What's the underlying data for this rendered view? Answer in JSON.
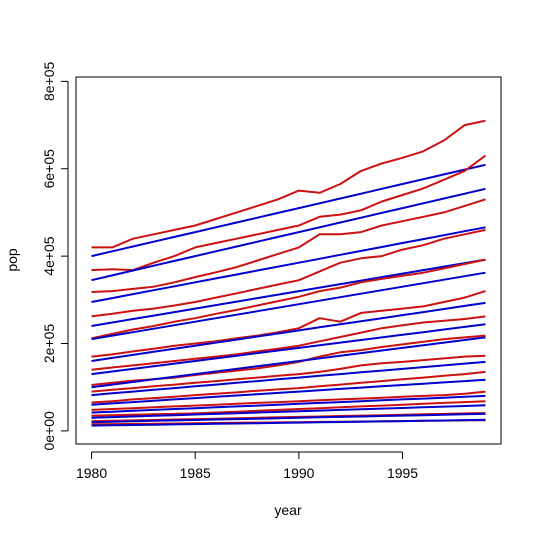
{
  "chart_data": {
    "type": "line",
    "title": "",
    "xlabel": "year",
    "ylabel": "pop",
    "xlim": [
      1979.25,
      1999.75
    ],
    "ylim": [
      -30000,
      810000
    ],
    "grid": false,
    "legend": "none",
    "x_ticks": [
      1980,
      1985,
      1990,
      1995
    ],
    "x_tick_labels": [
      "1980",
      "1985",
      "1990",
      "1995"
    ],
    "y_ticks": [
      0,
      200000,
      400000,
      600000,
      800000
    ],
    "y_tick_labels": [
      "0e+00",
      "2e+05",
      "4e+05",
      "6e+05",
      "8e+05"
    ],
    "colors": {
      "observed": "#cc1111",
      "fitted": "#0000cc"
    },
    "x": [
      1980,
      1981,
      1982,
      1983,
      1984,
      1985,
      1986,
      1987,
      1988,
      1989,
      1990,
      1991,
      1992,
      1993,
      1994,
      1995,
      1996,
      1997,
      1998,
      1999
    ],
    "series": [
      {
        "values": [
          420000,
          420000,
          440000,
          450000,
          460000,
          470000,
          485000,
          500000,
          515000,
          530000,
          550000,
          545000,
          565000,
          595000,
          612000,
          625000,
          640000,
          665000,
          700000,
          710000
        ]
      },
      {
        "values": [
          400000,
          411000,
          422000,
          433000,
          444000,
          455000,
          466000,
          477000,
          488000,
          499000,
          510000,
          521000,
          532000,
          543000,
          554000,
          565000,
          576000,
          587000,
          598000,
          609000
        ]
      },
      {
        "values": [
          368000,
          370000,
          368000,
          385000,
          400000,
          420000,
          430000,
          440000,
          450000,
          460000,
          470000,
          490000,
          495000,
          505000,
          525000,
          540000,
          555000,
          575000,
          595000,
          630000
        ]
      },
      {
        "values": [
          345000,
          356000,
          367000,
          378000,
          389000,
          400000,
          411000,
          422000,
          433000,
          444000,
          455000,
          466000,
          477000,
          488000,
          499000,
          510000,
          521000,
          532000,
          543000,
          554000
        ]
      },
      {
        "values": [
          318000,
          320000,
          325000,
          330000,
          340000,
          352000,
          363000,
          375000,
          390000,
          405000,
          420000,
          450000,
          450000,
          455000,
          470000,
          480000,
          490000,
          500000,
          515000,
          530000
        ]
      },
      {
        "values": [
          295000,
          304000,
          313000,
          322000,
          331000,
          340000,
          349000,
          358000,
          367000,
          376000,
          385000,
          394000,
          403000,
          412000,
          421000,
          430000,
          439000,
          448000,
          457000,
          466000
        ]
      },
      {
        "values": [
          262000,
          268000,
          275000,
          280000,
          287000,
          295000,
          305000,
          315000,
          325000,
          335000,
          345000,
          365000,
          385000,
          395000,
          400000,
          415000,
          425000,
          440000,
          450000,
          460000
        ]
      },
      {
        "values": [
          240000,
          248000,
          256000,
          264000,
          272000,
          280000,
          288000,
          296000,
          304000,
          312000,
          320000,
          328000,
          336000,
          344000,
          352000,
          360000,
          368000,
          376000,
          384000,
          392000
        ]
      },
      {
        "values": [
          212000,
          222000,
          232000,
          240000,
          250000,
          258000,
          268000,
          277000,
          287000,
          297000,
          307000,
          320000,
          328000,
          340000,
          348000,
          355000,
          362000,
          372000,
          382000,
          392000
        ]
      },
      {
        "values": [
          210000,
          218000,
          226000,
          234000,
          242000,
          250000,
          258000,
          266000,
          274000,
          282000,
          290000,
          298000,
          306000,
          314000,
          322000,
          330000,
          338000,
          346000,
          354000,
          362000
        ]
      },
      {
        "values": [
          170000,
          175000,
          182000,
          188000,
          195000,
          200000,
          205000,
          212000,
          218000,
          226000,
          235000,
          258000,
          250000,
          270000,
          275000,
          280000,
          285000,
          295000,
          305000,
          320000
        ]
      },
      {
        "values": [
          160000,
          167000,
          174000,
          181000,
          188000,
          195000,
          202000,
          209000,
          216000,
          223000,
          230000,
          237000,
          244000,
          251000,
          258000,
          265000,
          272000,
          279000,
          286000,
          293000
        ]
      },
      {
        "values": [
          140000,
          145000,
          150000,
          155000,
          160000,
          165000,
          170000,
          175000,
          182000,
          188000,
          195000,
          205000,
          215000,
          225000,
          235000,
          242000,
          248000,
          252000,
          256000,
          262000
        ]
      },
      {
        "values": [
          130000,
          136000,
          142000,
          148000,
          154000,
          160000,
          166000,
          172000,
          178000,
          184000,
          190000,
          196000,
          202000,
          208000,
          214000,
          220000,
          226000,
          232000,
          238000,
          244000
        ]
      },
      {
        "values": [
          105000,
          110000,
          115000,
          118000,
          122000,
          128000,
          133000,
          138000,
          143000,
          150000,
          158000,
          170000,
          180000,
          185000,
          192000,
          198000,
          204000,
          210000,
          214000,
          218000
        ]
      },
      {
        "values": [
          100000,
          106000,
          112000,
          118000,
          124000,
          130000,
          136000,
          142000,
          148000,
          154000,
          160000,
          166000,
          172000,
          178000,
          184000,
          190000,
          196000,
          202000,
          208000,
          214000
        ]
      },
      {
        "values": [
          90000,
          94000,
          98000,
          102000,
          106000,
          110000,
          114000,
          118000,
          122000,
          126000,
          130000,
          135000,
          142000,
          150000,
          155000,
          158000,
          162000,
          166000,
          170000,
          172000
        ]
      },
      {
        "values": [
          82000,
          86000,
          90000,
          94000,
          98000,
          102000,
          106000,
          110000,
          114000,
          118000,
          122000,
          126000,
          130000,
          134000,
          138000,
          142000,
          146000,
          150000,
          154000,
          158000
        ]
      },
      {
        "values": [
          65000,
          68000,
          72000,
          75000,
          78000,
          82000,
          85000,
          88000,
          92000,
          95000,
          98000,
          102000,
          106000,
          110000,
          114000,
          118000,
          122000,
          126000,
          130000,
          135000
        ]
      },
      {
        "values": [
          60000,
          63000,
          66000,
          69000,
          72000,
          75000,
          78000,
          81000,
          84000,
          87000,
          90000,
          93000,
          96000,
          99000,
          102000,
          105000,
          108000,
          111000,
          114000,
          117000
        ]
      },
      {
        "values": [
          48000,
          50000,
          52000,
          54000,
          56000,
          58000,
          60000,
          62000,
          64000,
          66000,
          68000,
          70000,
          72000,
          74000,
          76000,
          78000,
          80000,
          82000,
          85000,
          90000
        ]
      },
      {
        "values": [
          42000,
          44000,
          46000,
          48000,
          50000,
          52000,
          54000,
          56000,
          58000,
          60000,
          62000,
          64000,
          66000,
          68000,
          70000,
          72000,
          74000,
          76000,
          78000,
          80000
        ]
      },
      {
        "values": [
          35000,
          36000,
          37000,
          38000,
          39000,
          40000,
          42000,
          44000,
          46000,
          48000,
          50000,
          52000,
          54000,
          56000,
          58000,
          60000,
          62000,
          64000,
          66000,
          68000
        ]
      },
      {
        "values": [
          30000,
          31500,
          33000,
          34500,
          36000,
          37500,
          39000,
          40500,
          42000,
          43500,
          45000,
          46500,
          48000,
          49500,
          51000,
          52500,
          54000,
          55500,
          57000,
          58500
        ]
      },
      {
        "values": [
          22000,
          23000,
          24000,
          25000,
          26000,
          27000,
          28000,
          29000,
          30000,
          31000,
          32000,
          33000,
          34000,
          35000,
          36000,
          37000,
          38000,
          39000,
          40000,
          41000
        ]
      },
      {
        "values": [
          20000,
          21000,
          22000,
          23000,
          24000,
          25000,
          26000,
          27000,
          28000,
          29000,
          30000,
          31000,
          32000,
          33000,
          34000,
          35000,
          36000,
          37000,
          38000,
          39000
        ]
      },
      {
        "values": [
          15000,
          15500,
          16000,
          16500,
          17000,
          17500,
          18000,
          18500,
          19000,
          19500,
          20000,
          20500,
          21000,
          21500,
          22000,
          22500,
          23000,
          23500,
          24000,
          24500
        ]
      },
      {
        "values": [
          12000,
          12700,
          13400,
          14100,
          14800,
          15500,
          16200,
          16900,
          17600,
          18300,
          19000,
          19700,
          20400,
          21100,
          21800,
          22500,
          23200,
          23900,
          24600,
          25300
        ]
      }
    ]
  }
}
